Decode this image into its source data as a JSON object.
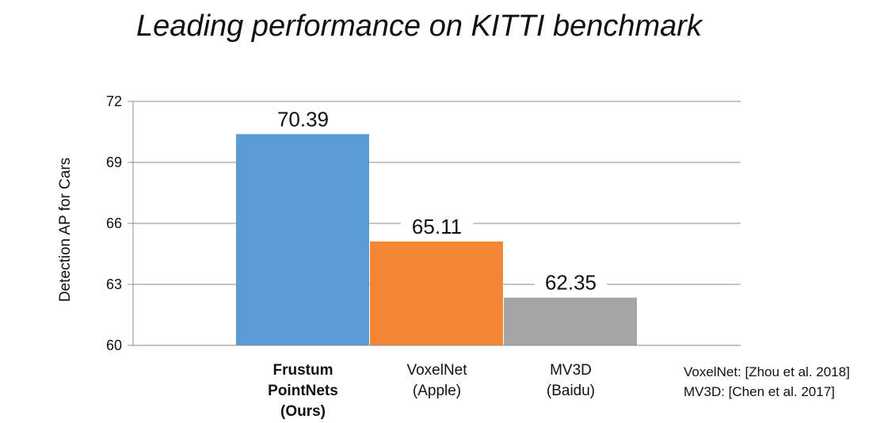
{
  "chart_data": {
    "type": "bar",
    "title": "Leading performance on KITTI benchmark",
    "ylabel": "Detection AP for Cars",
    "xlabel": "",
    "ylim": [
      60,
      72
    ],
    "yticks": [
      60,
      63,
      66,
      69,
      72
    ],
    "grid": true,
    "categories": [
      {
        "lines": [
          "Frustum",
          "PointNets",
          "(Ours)"
        ],
        "bold": true
      },
      {
        "lines": [
          "VoxelNet",
          "(Apple)"
        ],
        "bold": false
      },
      {
        "lines": [
          "MV3D",
          "(Baidu)"
        ],
        "bold": false
      }
    ],
    "values": [
      70.39,
      65.11,
      62.35
    ],
    "value_labels": [
      "70.39",
      "65.11",
      "62.35"
    ],
    "colors": [
      "#5b9bd5",
      "#f58634",
      "#a5a5a5"
    ]
  },
  "references": [
    "VoxelNet: [Zhou et al. 2018]",
    "MV3D: [Chen et al. 2017]"
  ]
}
